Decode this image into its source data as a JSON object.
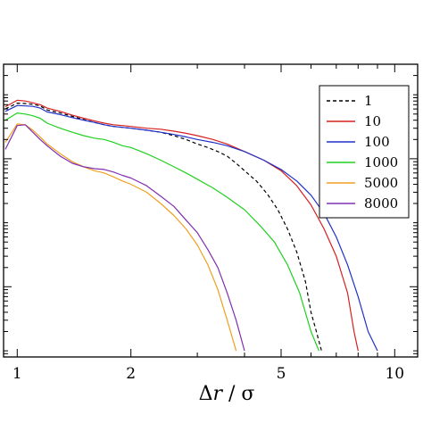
{
  "chart_data": {
    "type": "line",
    "title": "",
    "xlabel_parts": [
      "Δ",
      "r",
      " / ",
      "σ"
    ],
    "ylabel": "",
    "x_scale": "log",
    "y_scale": "log",
    "xlim": [
      0.92,
      11.5
    ],
    "ylim": [
      8e-06,
      0.3
    ],
    "xticks": [
      1,
      2,
      5,
      10
    ],
    "xtick_labels": [
      "1",
      "2",
      "5",
      "10"
    ],
    "yticks_major": [
      0.0001,
      0.01
    ],
    "grid": false,
    "legend_position": "top-right",
    "series": [
      {
        "name": "1",
        "color": "#000000",
        "dash": true,
        "points": [
          [
            0.93,
            0.06
          ],
          [
            1.0,
            0.074
          ],
          [
            1.05,
            0.073
          ],
          [
            1.1,
            0.071
          ],
          [
            1.15,
            0.067
          ],
          [
            1.2,
            0.058
          ],
          [
            1.3,
            0.052
          ],
          [
            1.4,
            0.046
          ],
          [
            1.5,
            0.041
          ],
          [
            1.6,
            0.037
          ],
          [
            1.7,
            0.034
          ],
          [
            1.8,
            0.032
          ],
          [
            1.9,
            0.031
          ],
          [
            2.0,
            0.03
          ],
          [
            2.2,
            0.028
          ],
          [
            2.4,
            0.026
          ],
          [
            2.6,
            0.023
          ],
          [
            2.8,
            0.02
          ],
          [
            3.0,
            0.017
          ],
          [
            3.2,
            0.015
          ],
          [
            3.4,
            0.013
          ],
          [
            3.6,
            0.011
          ],
          [
            3.8,
            0.0085
          ],
          [
            4.0,
            0.0065
          ],
          [
            4.3,
            0.0045
          ],
          [
            4.6,
            0.0028
          ],
          [
            4.9,
            0.0016
          ],
          [
            5.2,
            0.0008
          ],
          [
            5.5,
            0.00035
          ],
          [
            5.8,
            0.00012
          ],
          [
            6.0,
            4e-05
          ],
          [
            6.2,
            2e-05
          ],
          [
            6.4,
            1e-05
          ]
        ]
      },
      {
        "name": "10",
        "color": "#d62020",
        "dash": false,
        "points": [
          [
            0.93,
            0.065
          ],
          [
            1.0,
            0.082
          ],
          [
            1.05,
            0.08
          ],
          [
            1.1,
            0.075
          ],
          [
            1.15,
            0.07
          ],
          [
            1.2,
            0.062
          ],
          [
            1.3,
            0.055
          ],
          [
            1.4,
            0.048
          ],
          [
            1.5,
            0.043
          ],
          [
            1.6,
            0.039
          ],
          [
            1.7,
            0.036
          ],
          [
            1.8,
            0.034
          ],
          [
            1.9,
            0.033
          ],
          [
            2.0,
            0.032
          ],
          [
            2.2,
            0.03
          ],
          [
            2.4,
            0.029
          ],
          [
            2.6,
            0.027
          ],
          [
            2.8,
            0.025
          ],
          [
            3.0,
            0.023
          ],
          [
            3.3,
            0.02
          ],
          [
            3.6,
            0.017
          ],
          [
            4.0,
            0.013
          ],
          [
            4.5,
            0.0095
          ],
          [
            5.0,
            0.0065
          ],
          [
            5.5,
            0.0038
          ],
          [
            6.0,
            0.0019
          ],
          [
            6.5,
            0.0008
          ],
          [
            7.0,
            0.0003
          ],
          [
            7.5,
            8e-05
          ],
          [
            7.8,
            2e-05
          ],
          [
            8.0,
            1e-05
          ]
        ]
      },
      {
        "name": "100",
        "color": "#2030c8",
        "dash": false,
        "points": [
          [
            0.93,
            0.055
          ],
          [
            1.0,
            0.068
          ],
          [
            1.05,
            0.067
          ],
          [
            1.1,
            0.066
          ],
          [
            1.15,
            0.062
          ],
          [
            1.2,
            0.054
          ],
          [
            1.3,
            0.049
          ],
          [
            1.4,
            0.044
          ],
          [
            1.5,
            0.04
          ],
          [
            1.6,
            0.037
          ],
          [
            1.7,
            0.034
          ],
          [
            1.8,
            0.032
          ],
          [
            1.9,
            0.031
          ],
          [
            2.0,
            0.03
          ],
          [
            2.2,
            0.028
          ],
          [
            2.4,
            0.026
          ],
          [
            2.6,
            0.024
          ],
          [
            2.8,
            0.022
          ],
          [
            3.0,
            0.02
          ],
          [
            3.3,
            0.018
          ],
          [
            3.6,
            0.016
          ],
          [
            4.0,
            0.013
          ],
          [
            4.5,
            0.0095
          ],
          [
            5.0,
            0.0068
          ],
          [
            5.5,
            0.0045
          ],
          [
            6.0,
            0.0027
          ],
          [
            6.5,
            0.0014
          ],
          [
            7.0,
            0.0006
          ],
          [
            7.5,
            0.00022
          ],
          [
            8.0,
            7e-05
          ],
          [
            8.5,
            2e-05
          ],
          [
            9.0,
            1e-05
          ]
        ]
      },
      {
        "name": "1000",
        "color": "#20d020",
        "dash": false,
        "points": [
          [
            0.93,
            0.04
          ],
          [
            1.0,
            0.052
          ],
          [
            1.05,
            0.05
          ],
          [
            1.1,
            0.047
          ],
          [
            1.15,
            0.043
          ],
          [
            1.2,
            0.036
          ],
          [
            1.3,
            0.03
          ],
          [
            1.4,
            0.026
          ],
          [
            1.5,
            0.023
          ],
          [
            1.6,
            0.021
          ],
          [
            1.7,
            0.02
          ],
          [
            1.8,
            0.018
          ],
          [
            1.9,
            0.016
          ],
          [
            2.0,
            0.015
          ],
          [
            2.2,
            0.012
          ],
          [
            2.4,
            0.0095
          ],
          [
            2.6,
            0.0075
          ],
          [
            2.8,
            0.006
          ],
          [
            3.0,
            0.0048
          ],
          [
            3.3,
            0.0035
          ],
          [
            3.6,
            0.0025
          ],
          [
            4.0,
            0.0016
          ],
          [
            4.4,
            0.0009
          ],
          [
            4.8,
            0.0005
          ],
          [
            5.2,
            0.00022
          ],
          [
            5.6,
            8e-05
          ],
          [
            6.0,
            2e-05
          ],
          [
            6.3,
            1e-05
          ]
        ]
      },
      {
        "name": "5000",
        "color": "#f0a020",
        "dash": false,
        "points": [
          [
            0.93,
            0.018
          ],
          [
            1.0,
            0.035
          ],
          [
            1.05,
            0.034
          ],
          [
            1.1,
            0.028
          ],
          [
            1.15,
            0.022
          ],
          [
            1.2,
            0.017
          ],
          [
            1.3,
            0.012
          ],
          [
            1.4,
            0.009
          ],
          [
            1.5,
            0.0075
          ],
          [
            1.6,
            0.0065
          ],
          [
            1.7,
            0.006
          ],
          [
            1.8,
            0.0052
          ],
          [
            1.9,
            0.0045
          ],
          [
            2.0,
            0.004
          ],
          [
            2.2,
            0.003
          ],
          [
            2.4,
            0.002
          ],
          [
            2.6,
            0.0013
          ],
          [
            2.8,
            0.0008
          ],
          [
            3.0,
            0.00045
          ],
          [
            3.2,
            0.00022
          ],
          [
            3.4,
            9e-05
          ],
          [
            3.6,
            3e-05
          ],
          [
            3.8,
            1e-05
          ]
        ]
      },
      {
        "name": "8000",
        "color": "#8030b0",
        "dash": false,
        "points": [
          [
            0.93,
            0.014
          ],
          [
            1.0,
            0.033
          ],
          [
            1.05,
            0.034
          ],
          [
            1.1,
            0.026
          ],
          [
            1.15,
            0.02
          ],
          [
            1.2,
            0.016
          ],
          [
            1.3,
            0.011
          ],
          [
            1.4,
            0.0085
          ],
          [
            1.5,
            0.0075
          ],
          [
            1.6,
            0.007
          ],
          [
            1.7,
            0.0068
          ],
          [
            1.8,
            0.0062
          ],
          [
            1.9,
            0.0055
          ],
          [
            2.0,
            0.005
          ],
          [
            2.2,
            0.0038
          ],
          [
            2.4,
            0.0026
          ],
          [
            2.6,
            0.0018
          ],
          [
            2.8,
            0.0011
          ],
          [
            3.0,
            0.0007
          ],
          [
            3.2,
            0.00038
          ],
          [
            3.4,
            0.0002
          ],
          [
            3.6,
            8e-05
          ],
          [
            3.8,
            3e-05
          ],
          [
            4.0,
            1e-05
          ]
        ]
      }
    ]
  }
}
